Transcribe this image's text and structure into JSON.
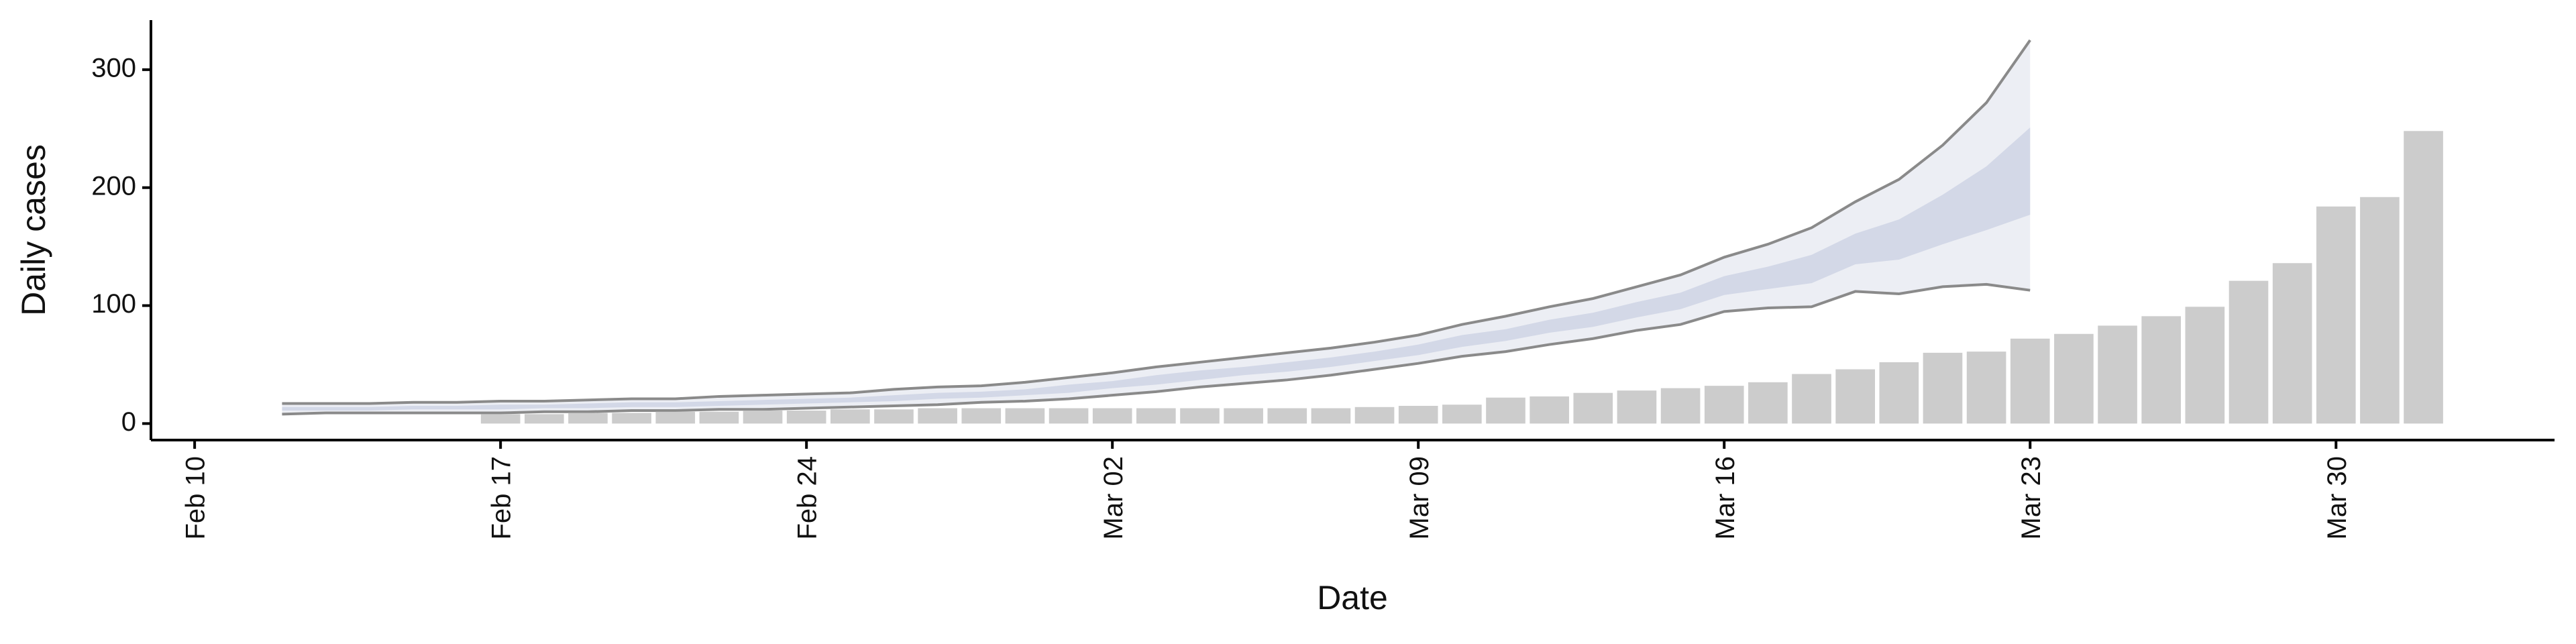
{
  "chart_data": {
    "type": "bar",
    "xlabel": "Date",
    "ylabel": "Daily cases",
    "color": "#cccccc",
    "x": [
      "02-17",
      "02-18",
      "02-19",
      "02-20",
      "02-21",
      "02-22",
      "02-23",
      "02-24",
      "02-25",
      "02-26",
      "02-27",
      "02-28",
      "02-29",
      "03-01",
      "03-02",
      "03-03",
      "03-04",
      "03-05",
      "03-06",
      "03-07",
      "03-08",
      "03-09",
      "03-10",
      "03-11",
      "03-12",
      "03-13",
      "03-14",
      "03-15",
      "03-16",
      "03-17",
      "03-18",
      "03-19",
      "03-20",
      "03-21",
      "03-22",
      "03-23",
      "03-24",
      "03-25",
      "03-26",
      "03-27",
      "03-28",
      "03-29",
      "03-30",
      "03-31",
      "04-01"
    ],
    "values": [
      8,
      8,
      9,
      9,
      10,
      10,
      11,
      11,
      12,
      12,
      13,
      13,
      13,
      13,
      13,
      13,
      13,
      13,
      13,
      13,
      14,
      15,
      16,
      22,
      23,
      26,
      28,
      30,
      32,
      35,
      42,
      46,
      52,
      60,
      61,
      72,
      76,
      83,
      91,
      99,
      121,
      136,
      184,
      192,
      248
    ],
    "ribbon": {
      "x": [
        "02-12",
        "02-13",
        "02-14",
        "02-15",
        "02-16",
        "02-17",
        "02-18",
        "02-19",
        "02-20",
        "02-21",
        "02-22",
        "02-23",
        "02-24",
        "02-25",
        "02-26",
        "02-27",
        "02-28",
        "02-29",
        "03-01",
        "03-02",
        "03-03",
        "03-04",
        "03-05",
        "03-06",
        "03-07",
        "03-08",
        "03-09",
        "03-10",
        "03-11",
        "03-12",
        "03-13",
        "03-14",
        "03-15",
        "03-16",
        "03-17",
        "03-18",
        "03-19",
        "03-20",
        "03-21",
        "03-22",
        "03-23"
      ],
      "outer_color": "#eceef4",
      "inner_color": "#d3d8e7",
      "line_color": "#8a8a8a",
      "upper90": [
        17,
        17,
        17,
        18,
        18,
        19,
        19,
        20,
        21,
        21,
        23,
        24,
        25,
        26,
        29,
        31,
        32,
        35,
        39,
        43,
        48,
        52,
        56,
        60,
        64,
        69,
        75,
        84,
        91,
        99,
        106,
        116,
        126,
        141,
        152,
        166,
        188,
        207,
        236,
        272,
        325
      ],
      "lower90": [
        8,
        9,
        9,
        9,
        9,
        9,
        10,
        10,
        11,
        11,
        12,
        12,
        13,
        14,
        15,
        16,
        18,
        19,
        21,
        24,
        27,
        31,
        34,
        37,
        41,
        46,
        51,
        57,
        61,
        67,
        72,
        79,
        84,
        95,
        98,
        99,
        112,
        110,
        116,
        118,
        113
      ],
      "upper50": [
        14,
        14,
        14,
        15,
        15,
        16,
        16,
        17,
        18,
        18,
        19,
        20,
        21,
        22,
        24,
        26,
        27,
        29,
        33,
        36,
        41,
        45,
        48,
        52,
        56,
        61,
        67,
        75,
        80,
        88,
        94,
        103,
        111,
        125,
        133,
        143,
        161,
        173,
        194,
        218,
        251
      ],
      "lower50": [
        11,
        11,
        11,
        12,
        12,
        12,
        13,
        13,
        14,
        14,
        15,
        16,
        17,
        18,
        19,
        21,
        22,
        24,
        26,
        30,
        33,
        37,
        41,
        44,
        48,
        53,
        58,
        65,
        70,
        77,
        82,
        90,
        97,
        109,
        114,
        119,
        135,
        139,
        152,
        164,
        177
      ]
    },
    "xlim": [
      "02-09",
      "04-04"
    ],
    "xticks": [
      {
        "value": "02-10",
        "label": "Feb 10"
      },
      {
        "value": "02-17",
        "label": "Feb 17"
      },
      {
        "value": "02-24",
        "label": "Feb 24"
      },
      {
        "value": "03-02",
        "label": "Mar 02"
      },
      {
        "value": "03-09",
        "label": "Mar 09"
      },
      {
        "value": "03-16",
        "label": "Mar 16"
      },
      {
        "value": "03-23",
        "label": "Mar 23"
      },
      {
        "value": "03-30",
        "label": "Mar 30"
      }
    ],
    "ylim": [
      -14,
      342
    ],
    "yticks": [
      0,
      100,
      200,
      300
    ]
  }
}
